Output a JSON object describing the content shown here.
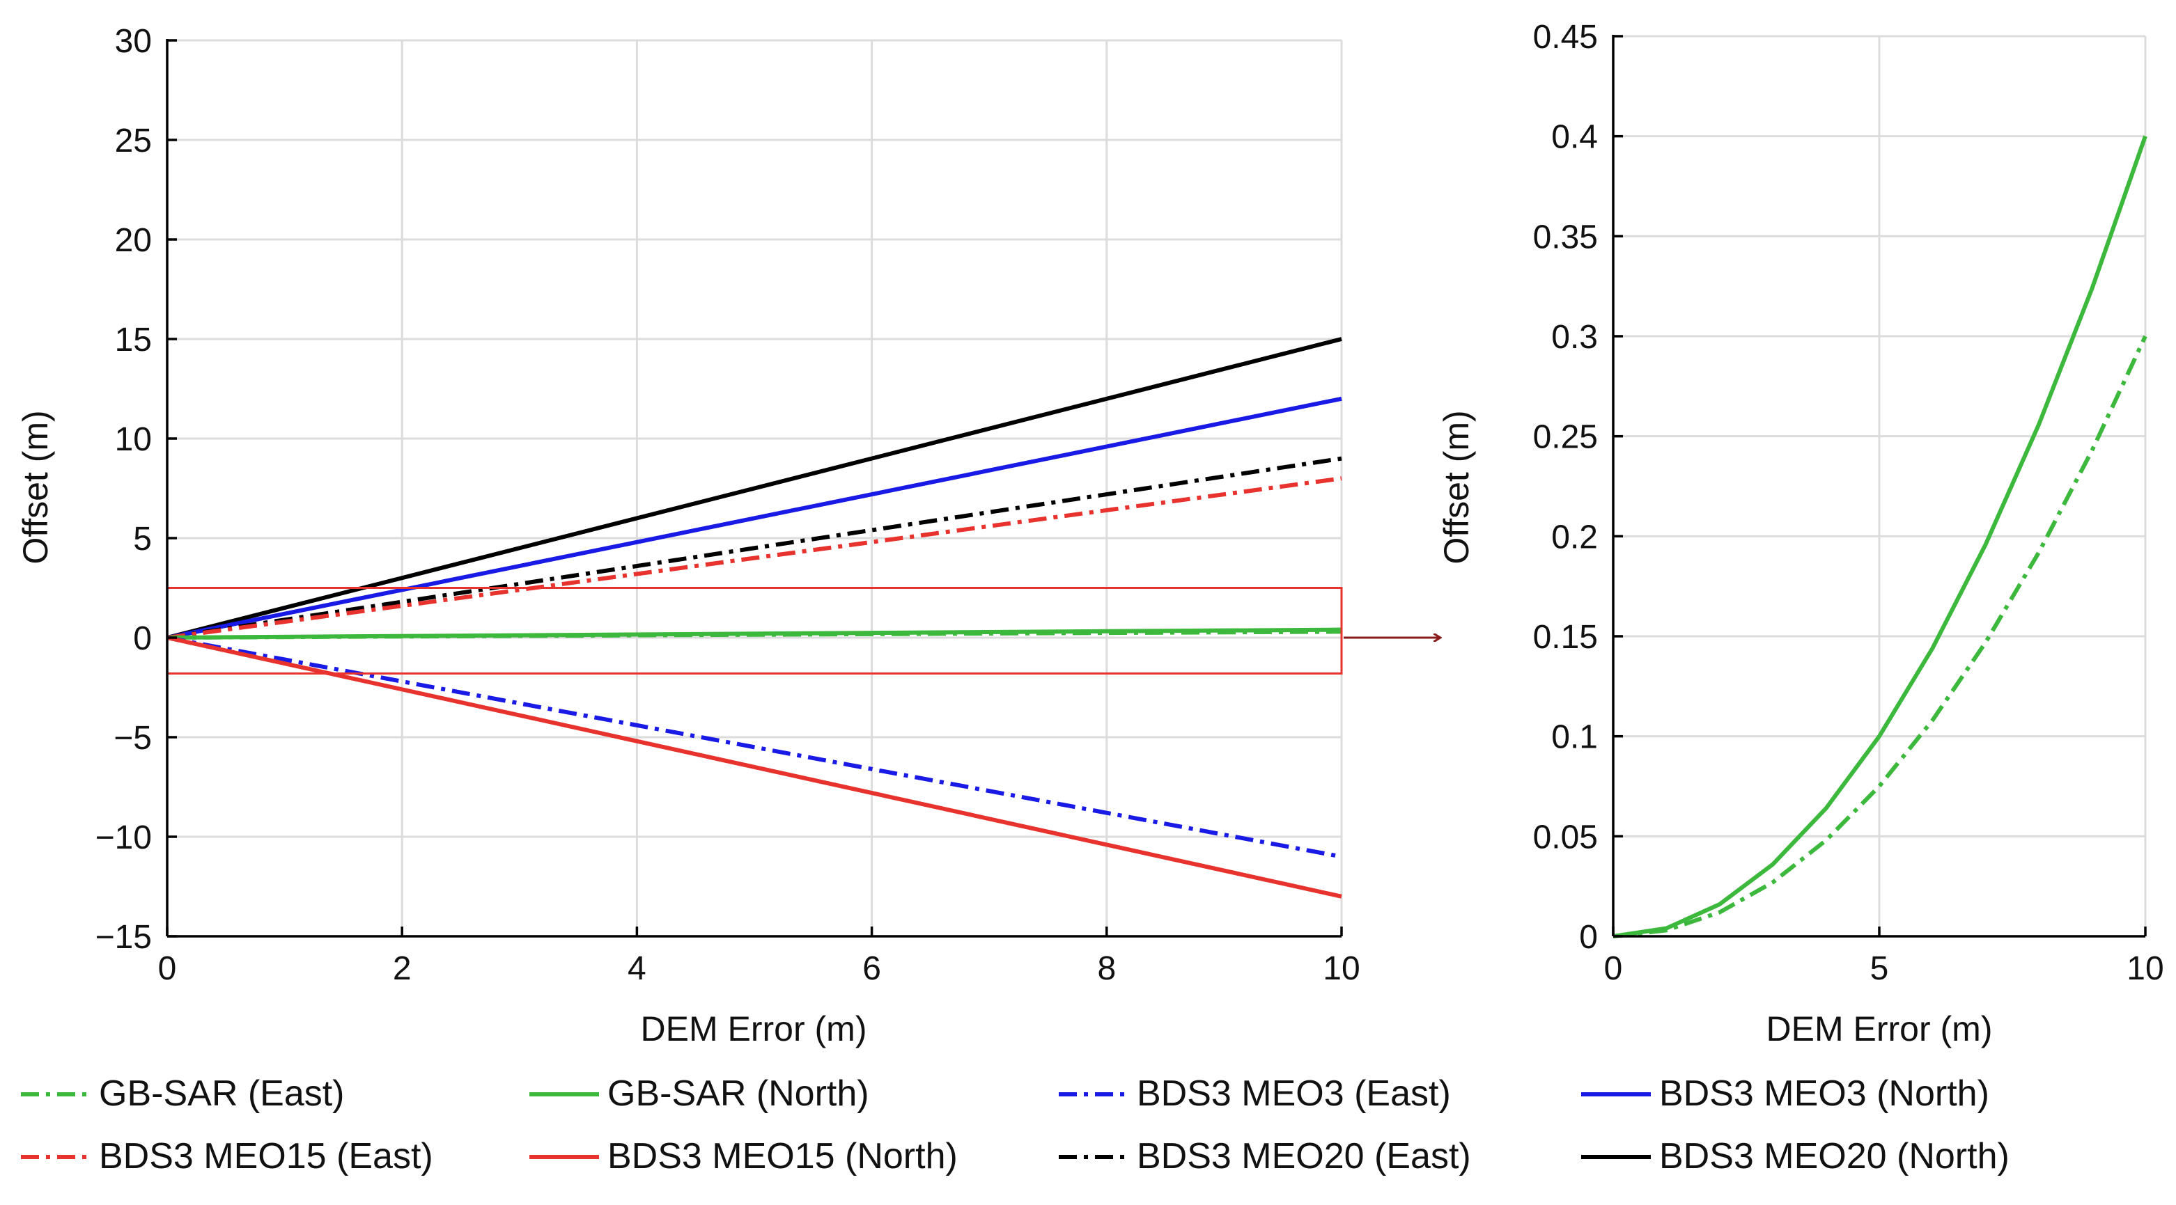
{
  "chart_data": [
    {
      "type": "line",
      "xlabel": "DEM Error (m)",
      "ylabel": "Offset (m)",
      "xlim": [
        0,
        10
      ],
      "ylim": [
        -15,
        30
      ],
      "xticks": [
        0,
        2,
        4,
        6,
        8,
        10
      ],
      "xtick_labels": [
        "0",
        "2",
        "4",
        "6",
        "8",
        "10"
      ],
      "yticks": [
        -15,
        -10,
        -5,
        0,
        5,
        10,
        15,
        20,
        25,
        30
      ],
      "ytick_labels": [
        "−15",
        "−10",
        "−5",
        "0",
        "5",
        "10",
        "15",
        "20",
        "25",
        "30"
      ],
      "grid": true,
      "zoom_box": {
        "x": [
          0,
          10
        ],
        "y": [
          -1.8,
          2.5
        ],
        "color": "#e8322d"
      },
      "series": [
        {
          "key": "bds3_meo20_north",
          "name": "BDS3 MEO20 (North)",
          "color": "#000000",
          "dash": "solid",
          "x": [
            0,
            10
          ],
          "y": [
            0,
            15
          ]
        },
        {
          "key": "bds3_meo3_north",
          "name": "BDS3 MEO3 (North)",
          "color": "#1a1ae6",
          "dash": "solid",
          "x": [
            0,
            10
          ],
          "y": [
            0,
            12
          ]
        },
        {
          "key": "bds3_meo20_east",
          "name": "BDS3 MEO20 (East)",
          "color": "#000000",
          "dash": "dashdot",
          "x": [
            0,
            10
          ],
          "y": [
            0,
            9
          ]
        },
        {
          "key": "bds3_meo15_east",
          "name": "BDS3 MEO15 (East)",
          "color": "#e8322d",
          "dash": "dashdot",
          "x": [
            0,
            10
          ],
          "y": [
            0,
            8
          ]
        },
        {
          "key": "gbsar_north",
          "name": "GB-SAR (North)",
          "color": "#3cb83c",
          "dash": "solid",
          "x": [
            0,
            10
          ],
          "y": [
            0,
            0.4
          ]
        },
        {
          "key": "gbsar_east",
          "name": "GB-SAR (East)",
          "color": "#3cb83c",
          "dash": "dashdot",
          "x": [
            0,
            10
          ],
          "y": [
            0,
            0.3
          ]
        },
        {
          "key": "bds3_meo3_east",
          "name": "BDS3 MEO3 (East)",
          "color": "#1a1ae6",
          "dash": "dashdot",
          "x": [
            0,
            10
          ],
          "y": [
            0,
            -11
          ]
        },
        {
          "key": "bds3_meo15_north",
          "name": "BDS3 MEO15 (North)",
          "color": "#e8322d",
          "dash": "solid",
          "x": [
            0,
            10
          ],
          "y": [
            0,
            -13
          ]
        }
      ]
    },
    {
      "type": "line",
      "xlabel": "DEM Error (m)",
      "ylabel": "Offset (m)",
      "xlim": [
        0,
        10
      ],
      "ylim": [
        0,
        0.45
      ],
      "xticks": [
        0,
        5,
        10
      ],
      "xtick_labels": [
        "0",
        "5",
        "10"
      ],
      "yticks": [
        0,
        0.05,
        0.1,
        0.15,
        0.2,
        0.25,
        0.3,
        0.35,
        0.4,
        0.45
      ],
      "ytick_labels": [
        "0",
        "0.05",
        "0.1",
        "0.15",
        "0.2",
        "0.25",
        "0.3",
        "0.35",
        "0.4",
        "0.45"
      ],
      "grid": true,
      "series": [
        {
          "key": "gbsar_north_zoom",
          "name": "GB-SAR (North)",
          "color": "#3cb83c",
          "dash": "solid",
          "x": [
            0,
            1,
            2,
            3,
            4,
            5,
            6,
            7,
            8,
            9,
            10
          ],
          "y": [
            0,
            0.004,
            0.016,
            0.036,
            0.064,
            0.1,
            0.144,
            0.196,
            0.256,
            0.324,
            0.4
          ]
        },
        {
          "key": "gbsar_east_zoom",
          "name": "GB-SAR (East)",
          "color": "#3cb83c",
          "dash": "dashdot",
          "x": [
            0,
            1,
            2,
            3,
            4,
            5,
            6,
            7,
            8,
            9,
            10
          ],
          "y": [
            0,
            0.003,
            0.012,
            0.027,
            0.048,
            0.075,
            0.108,
            0.147,
            0.192,
            0.243,
            0.3
          ]
        }
      ]
    }
  ],
  "legend": [
    {
      "label": "GB-SAR (East)",
      "color": "#3cb83c",
      "dash": "dashdot"
    },
    {
      "label": "GB-SAR (North)",
      "color": "#3cb83c",
      "dash": "solid"
    },
    {
      "label": "BDS3 MEO3 (East)",
      "color": "#1a1ae6",
      "dash": "dashdot"
    },
    {
      "label": "BDS3 MEO3 (North)",
      "color": "#1a1ae6",
      "dash": "solid"
    },
    {
      "label": "BDS3 MEO15 (East)",
      "color": "#e8322d",
      "dash": "dashdot"
    },
    {
      "label": "BDS3 MEO15 (North)",
      "color": "#e8322d",
      "dash": "solid"
    },
    {
      "label": "BDS3 MEO20 (East)",
      "color": "#000000",
      "dash": "dashdot"
    },
    {
      "label": "BDS3 MEO20 (North)",
      "color": "#000000",
      "dash": "solid"
    }
  ]
}
